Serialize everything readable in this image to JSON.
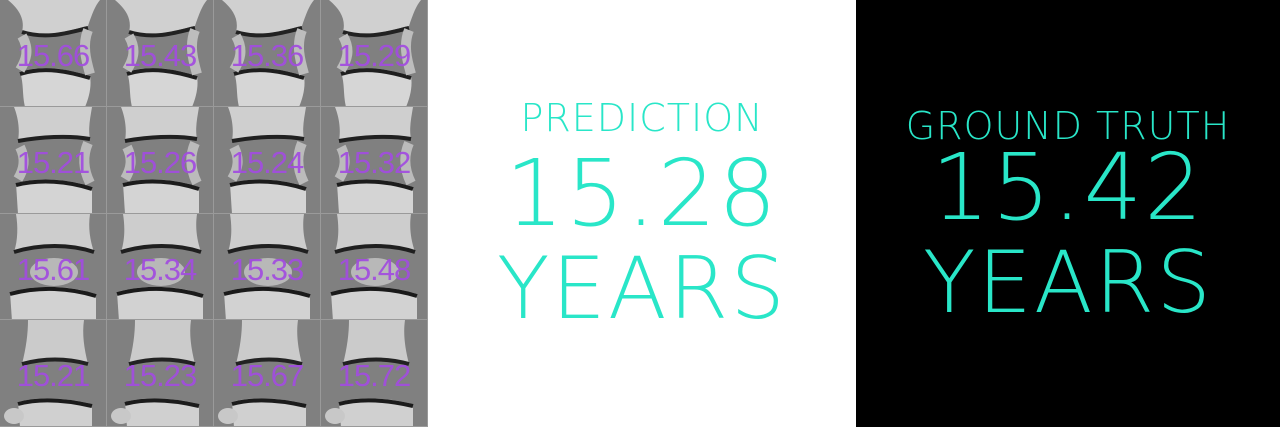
{
  "tiles": [
    {
      "value": "15.66"
    },
    {
      "value": "15.43"
    },
    {
      "value": "15.36"
    },
    {
      "value": "15.29"
    },
    {
      "value": "15.21"
    },
    {
      "value": "15.26"
    },
    {
      "value": "15.24"
    },
    {
      "value": "15.32"
    },
    {
      "value": "15.61"
    },
    {
      "value": "15.34"
    },
    {
      "value": "15.33"
    },
    {
      "value": "15.48"
    },
    {
      "value": "15.21"
    },
    {
      "value": "15.23"
    },
    {
      "value": "15.67"
    },
    {
      "value": "15.72"
    }
  ],
  "prediction": {
    "label": "PREDICTION",
    "value": "15.28",
    "unit": "YEARS"
  },
  "ground_truth": {
    "label": "GROUND TRUTH",
    "value": "15.42",
    "unit": "YEARS"
  },
  "colors": {
    "accent": "#29e6c8",
    "tile_text": "#a24ce0",
    "grid_bg": "#808080"
  }
}
